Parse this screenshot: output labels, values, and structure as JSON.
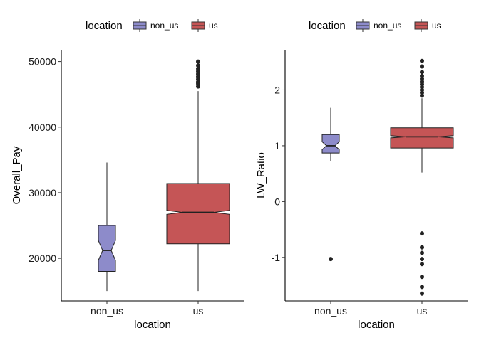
{
  "colors": {
    "non_us": "#8D8BCA",
    "us": "#C55556"
  },
  "chart_data": [
    {
      "type": "boxplot",
      "notched": true,
      "legend_title": "location",
      "legend_position": "top",
      "legend": [
        {
          "key": "non_us",
          "label": "non_us"
        },
        {
          "key": "us",
          "label": "us"
        }
      ],
      "xlabel": "location",
      "ylabel": "Overall_Pay",
      "categories": [
        "non_us",
        "us"
      ],
      "ylim": [
        13500,
        51800
      ],
      "yticks": [
        20000,
        30000,
        40000,
        50000
      ],
      "ytick_labels": [
        "20000",
        "30000",
        "40000",
        "50000"
      ],
      "boxes": [
        {
          "key": "non_us",
          "whisker_low": 15000,
          "q1": 18000,
          "median": 21200,
          "q3": 25000,
          "whisker_high": 34600,
          "notch_low": 19700,
          "notch_high": 22700,
          "outliers": []
        },
        {
          "key": "us",
          "whisker_low": 15000,
          "q1": 22200,
          "median": 27000,
          "q3": 31400,
          "whisker_high": 45500,
          "notch_low": 26700,
          "notch_high": 27300,
          "outliers": [
            46200,
            46600,
            46900,
            47300,
            47700,
            48100,
            48500,
            48900,
            49400,
            50000
          ]
        }
      ]
    },
    {
      "type": "boxplot",
      "notched": true,
      "legend_title": "location",
      "legend_position": "top",
      "legend": [
        {
          "key": "non_us",
          "label": "non_us"
        },
        {
          "key": "us",
          "label": "us"
        }
      ],
      "xlabel": "location",
      "ylabel": "LW_Ratio",
      "categories": [
        "non_us",
        "us"
      ],
      "ylim": [
        -1.78,
        2.72
      ],
      "yticks": [
        -1,
        0,
        1,
        2
      ],
      "ytick_labels": [
        "-1",
        "0",
        "1",
        "2"
      ],
      "boxes": [
        {
          "key": "non_us",
          "whisker_low": 0.72,
          "q1": 0.87,
          "median": 1.0,
          "q3": 1.2,
          "whisker_high": 1.68,
          "notch_low": 0.93,
          "notch_high": 1.07,
          "outliers": [
            -1.03
          ]
        },
        {
          "key": "us",
          "whisker_low": 0.52,
          "q1": 0.96,
          "median": 1.16,
          "q3": 1.32,
          "whisker_high": 1.85,
          "notch_low": 1.14,
          "notch_high": 1.18,
          "outliers": [
            1.9,
            1.95,
            2.0,
            2.05,
            2.1,
            2.15,
            2.2,
            2.25,
            2.32,
            2.42,
            2.52,
            -0.57,
            -0.82,
            -0.92,
            -1.03,
            -1.12,
            -1.35,
            -1.53,
            -1.65
          ]
        }
      ]
    }
  ]
}
